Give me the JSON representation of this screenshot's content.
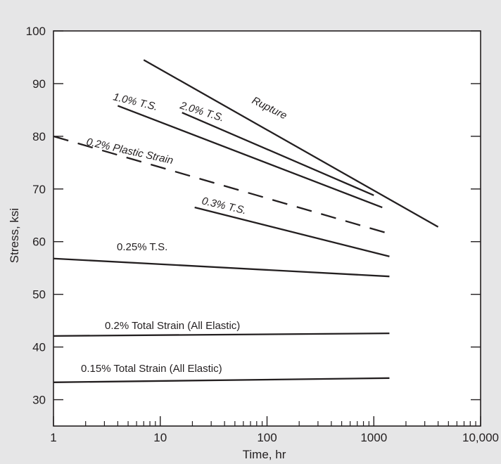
{
  "chart_data": {
    "type": "line",
    "xscale": "log",
    "xlabel": "Time, hr",
    "ylabel": "Stress, ksi",
    "xlim": [
      1,
      10000
    ],
    "ylim": [
      25,
      100
    ],
    "xticks": [
      1,
      10,
      100,
      1000,
      10000
    ],
    "xtick_labels": [
      "1",
      "10",
      "100",
      "1000",
      "10,000"
    ],
    "yticks": [
      30,
      40,
      50,
      60,
      70,
      80,
      90,
      100
    ],
    "ytick_labels": [
      "30",
      "40",
      "50",
      "60",
      "70",
      "80",
      "90",
      "100"
    ],
    "grid": false,
    "legend": "none",
    "colors": {
      "background": "#e6e6e7",
      "plot_area": "#ffffff",
      "ink": "#231f20"
    },
    "series": [
      {
        "name": "Rupture",
        "style": "solid",
        "points": [
          [
            7,
            94.5
          ],
          [
            4000,
            62.8
          ]
        ]
      },
      {
        "name": "2.0% T.S.",
        "style": "solid",
        "points": [
          [
            16,
            84.5
          ],
          [
            1000,
            68.8
          ]
        ]
      },
      {
        "name": "1.0% T.S.",
        "style": "solid",
        "points": [
          [
            4,
            85.8
          ],
          [
            1200,
            66.5
          ]
        ]
      },
      {
        "name": "0.2% Plastic Strain",
        "style": "dashed",
        "points": [
          [
            1,
            80
          ],
          [
            1400,
            61.5
          ]
        ]
      },
      {
        "name": "0.3% T.S.",
        "style": "solid",
        "points": [
          [
            21,
            66.5
          ],
          [
            1400,
            57.2
          ]
        ]
      },
      {
        "name": "0.25% T.S.",
        "style": "solid",
        "points": [
          [
            1,
            56.8
          ],
          [
            1400,
            53.4
          ]
        ]
      },
      {
        "name": "0.2% Total Strain (All Elastic)",
        "style": "solid",
        "points": [
          [
            1,
            42.1
          ],
          [
            1400,
            42.6
          ]
        ]
      },
      {
        "name": "0.15% Total Strain (All Elastic)",
        "style": "solid",
        "points": [
          [
            1,
            33.3
          ],
          [
            1400,
            34.1
          ]
        ]
      }
    ]
  }
}
